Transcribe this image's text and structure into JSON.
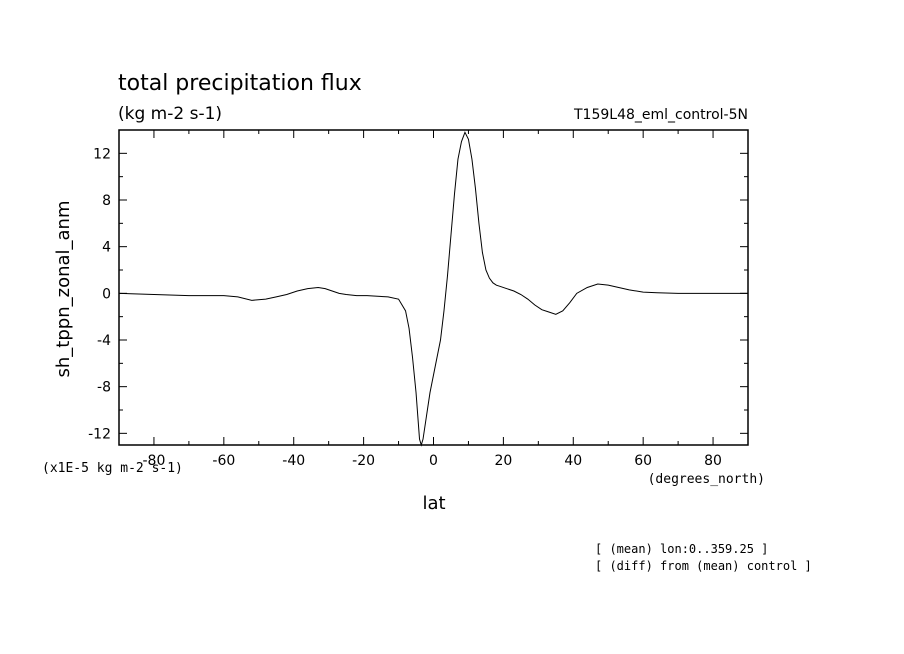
{
  "chart_data": {
    "type": "line",
    "title": "total precipitation flux",
    "subtitle": "(kg m-2 s-1)",
    "run_label": "T159L48_eml_control-5N",
    "xlabel": "lat",
    "x_units": "(degrees_north)",
    "ylabel": "sh_tppn_zonal_anm",
    "y_multiplier": "(x1E-5 kg m-2 s-1)",
    "xlim": [
      -90,
      90
    ],
    "ylim": [
      -13,
      14
    ],
    "x_ticks": [
      -80,
      -60,
      -40,
      -20,
      0,
      20,
      40,
      60,
      80
    ],
    "y_ticks": [
      -12,
      -8,
      -4,
      0,
      4,
      8,
      12
    ],
    "grid": false,
    "series": [
      {
        "x": [
          -90,
          -80,
          -70,
          -60,
          -56,
          -52,
          -48,
          -45,
          -42,
          -39,
          -36,
          -33,
          -31,
          -29,
          -27,
          -25,
          -22,
          -19,
          -16,
          -13,
          -10,
          -8,
          -7,
          -6,
          -5,
          -4.5,
          -4,
          -3.5,
          -3,
          -2,
          -1,
          0,
          1,
          2,
          3,
          4,
          5,
          6,
          7,
          8,
          9,
          10,
          11,
          12,
          13,
          14,
          15,
          16,
          17,
          18,
          19,
          21,
          23,
          25,
          27,
          29,
          31,
          33,
          35,
          37,
          39,
          41,
          44,
          47,
          50,
          53,
          56,
          60,
          64,
          70,
          75,
          80,
          85,
          90
        ],
        "y": [
          0,
          -0.1,
          -0.2,
          -0.2,
          -0.3,
          -0.6,
          -0.5,
          -0.3,
          -0.1,
          0.2,
          0.4,
          0.5,
          0.4,
          0.2,
          0.0,
          -0.1,
          -0.2,
          -0.2,
          -0.25,
          -0.3,
          -0.5,
          -1.5,
          -3,
          -5.5,
          -8.5,
          -10.5,
          -12.5,
          -13,
          -12.5,
          -10.5,
          -8.5,
          -7,
          -5.5,
          -4,
          -1.5,
          1.5,
          5,
          8.5,
          11.5,
          13,
          13.8,
          13.2,
          11.5,
          9,
          6,
          3.5,
          2,
          1.3,
          0.9,
          0.7,
          0.6,
          0.4,
          0.2,
          -0.1,
          -0.5,
          -1.0,
          -1.4,
          -1.6,
          -1.8,
          -1.5,
          -0.8,
          0.0,
          0.5,
          0.8,
          0.7,
          0.5,
          0.3,
          0.1,
          0.05,
          0.0,
          0.0,
          0.0,
          0.0,
          0.0
        ]
      }
    ],
    "footnotes": [
      "[ (mean) lon:0..359.25 ]",
      "[ (diff) from (mean) control ]"
    ]
  }
}
